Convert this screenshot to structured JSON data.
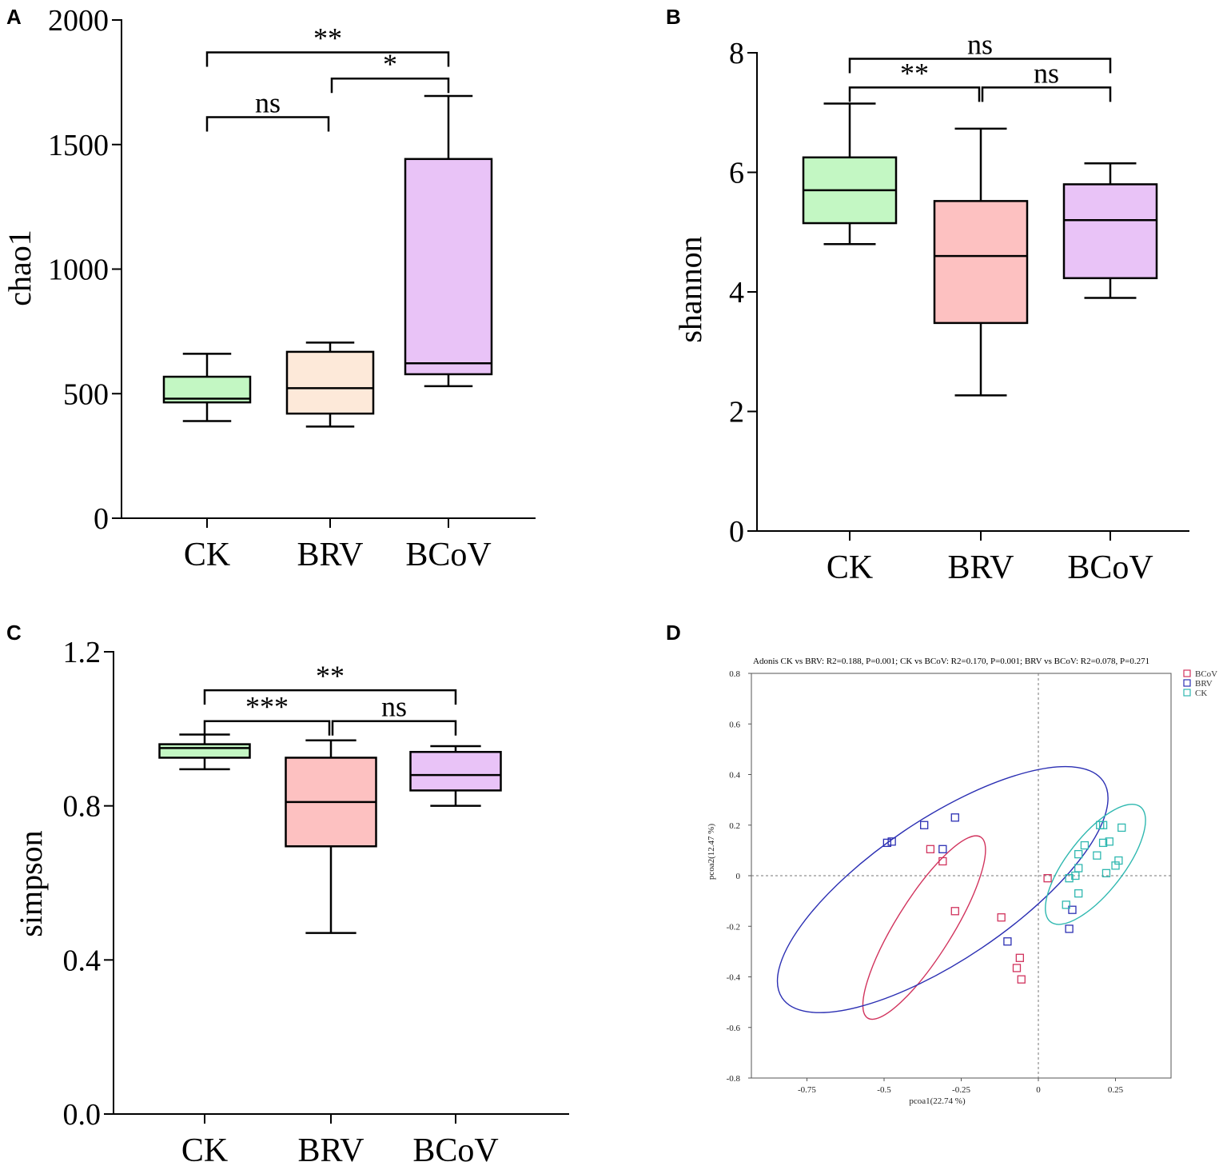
{
  "chart_data": [
    {
      "panel": "A",
      "type": "box",
      "ylabel": "chao1",
      "ylim": [
        0,
        2000
      ],
      "yticks": [
        0,
        500,
        1000,
        1500,
        2000
      ],
      "categories": [
        "CK",
        "BRV",
        "BCoV"
      ],
      "boxes": [
        {
          "name": "CK",
          "min": 390,
          "q1": 465,
          "median": 480,
          "q3": 568,
          "max": 660,
          "color": "#c3f7c3"
        },
        {
          "name": "BRV",
          "min": 368,
          "q1": 420,
          "median": 522,
          "q3": 668,
          "max": 705,
          "color": "#fde9d9"
        },
        {
          "name": "BCoV",
          "min": 530,
          "q1": 578,
          "median": 622,
          "q3": 1442,
          "max": 1695,
          "color": "#e9c3f7"
        }
      ],
      "comparisons": [
        {
          "from": 0,
          "to": 2,
          "label": "**",
          "level": 1870
        },
        {
          "from": 1,
          "to": 2,
          "label": "*",
          "level": 1765
        },
        {
          "from": 0,
          "to": 1,
          "label": "ns",
          "level": 1610
        }
      ]
    },
    {
      "panel": "B",
      "type": "box",
      "ylabel": "shannon",
      "ylim": [
        0,
        8
      ],
      "yticks": [
        0,
        2,
        4,
        6,
        8
      ],
      "categories": [
        "CK",
        "BRV",
        "BCoV"
      ],
      "boxes": [
        {
          "name": "CK",
          "min": 4.8,
          "q1": 5.15,
          "median": 5.7,
          "q3": 6.25,
          "max": 7.15,
          "color": "#c3f7c3"
        },
        {
          "name": "BRV",
          "min": 2.27,
          "q1": 3.48,
          "median": 4.6,
          "q3": 5.52,
          "max": 6.73,
          "color": "#fdc1c1"
        },
        {
          "name": "BCoV",
          "min": 3.9,
          "q1": 4.23,
          "median": 5.2,
          "q3": 5.8,
          "max": 6.15,
          "color": "#e9c3f7"
        }
      ],
      "comparisons": [
        {
          "from": 0,
          "to": 2,
          "label": "ns",
          "level": 7.9
        },
        {
          "from": 0,
          "to": 1,
          "label": "**",
          "level": 7.42
        },
        {
          "from": 1,
          "to": 2,
          "label": "ns",
          "level": 7.42
        }
      ]
    },
    {
      "panel": "C",
      "type": "box",
      "ylabel": "simpson",
      "ylim": [
        0,
        1.2
      ],
      "yticks": [
        "0.0",
        "0.4",
        "0.8",
        "1.2"
      ],
      "categories": [
        "CK",
        "BRV",
        "BCoV"
      ],
      "boxes": [
        {
          "name": "CK",
          "min": 0.895,
          "q1": 0.925,
          "median": 0.95,
          "q3": 0.96,
          "max": 0.985,
          "color": "#c3f7c3"
        },
        {
          "name": "BRV",
          "min": 0.47,
          "q1": 0.695,
          "median": 0.81,
          "q3": 0.925,
          "max": 0.97,
          "color": "#fdc1c1"
        },
        {
          "name": "BCoV",
          "min": 0.8,
          "q1": 0.84,
          "median": 0.88,
          "q3": 0.94,
          "max": 0.955,
          "color": "#e9c3f7"
        }
      ],
      "comparisons": [
        {
          "from": 0,
          "to": 2,
          "label": "**",
          "level": 1.1
        },
        {
          "from": 0,
          "to": 1,
          "label": "***",
          "level": 1.02
        },
        {
          "from": 1,
          "to": 2,
          "label": "ns",
          "level": 1.02
        }
      ]
    },
    {
      "panel": "D",
      "type": "scatter",
      "title": "Adonis CK vs BRV:  R2=0.188, P=0.001; CK vs BCoV:  R2=0.170, P=0.001; BRV vs BCoV:  R2=0.078, P=0.271",
      "xlabel": "pcoa1(22.74 %)",
      "ylabel": "pcoa2(12.47 %)",
      "xlim": [
        -0.93,
        0.43
      ],
      "ylim": [
        -0.8,
        0.8
      ],
      "xticks": [
        "-0.75",
        "-0.5",
        "-0.25",
        "0",
        "0.25"
      ],
      "xtick_values": [
        -0.75,
        -0.5,
        -0.25,
        0,
        0.25
      ],
      "yticks": [
        "0.8",
        "0.6",
        "0.4",
        "0.2",
        "0",
        "-0.2",
        "-0.4",
        "-0.6",
        "-0.8"
      ],
      "ytick_values": [
        0.8,
        0.6,
        0.4,
        0.2,
        0,
        -0.2,
        -0.4,
        -0.6,
        -0.8
      ],
      "series": [
        {
          "name": "BCoV",
          "color": "#d1335d",
          "points": [
            [
              -0.35,
              0.105
            ],
            [
              -0.31,
              0.057
            ],
            [
              -0.27,
              -0.14
            ],
            [
              -0.12,
              -0.165
            ],
            [
              -0.07,
              -0.365
            ],
            [
              -0.06,
              -0.325
            ],
            [
              -0.055,
              -0.41
            ],
            [
              0.03,
              -0.01
            ]
          ],
          "ellipse": {
            "cx": -0.37,
            "cy": -0.205,
            "rx": 0.38,
            "ry": 0.1,
            "angle_deg": -58
          }
        },
        {
          "name": "BRV",
          "color": "#2b2fb3",
          "points": [
            [
              -0.49,
              0.13
            ],
            [
              -0.475,
              0.135
            ],
            [
              -0.37,
              0.2
            ],
            [
              -0.31,
              0.105
            ],
            [
              -0.27,
              0.23
            ],
            [
              -0.1,
              -0.26
            ],
            [
              0.1,
              -0.21
            ],
            [
              0.11,
              -0.135
            ]
          ],
          "ellipse": {
            "cx": -0.31,
            "cy": -0.055,
            "rx": 0.69,
            "ry": 0.25,
            "angle_deg": -34
          }
        },
        {
          "name": "CK",
          "color": "#2fb8b0",
          "points": [
            [
              0.09,
              -0.115
            ],
            [
              0.1,
              -0.01
            ],
            [
              0.12,
              0.0
            ],
            [
              0.13,
              0.03
            ],
            [
              0.13,
              -0.07
            ],
            [
              0.13,
              0.085
            ],
            [
              0.15,
              0.12
            ],
            [
              0.19,
              0.08
            ],
            [
              0.2,
              0.2
            ],
            [
              0.21,
              0.13
            ],
            [
              0.21,
              0.2
            ],
            [
              0.22,
              0.01
            ],
            [
              0.23,
              0.135
            ],
            [
              0.25,
              0.04
            ],
            [
              0.26,
              0.06
            ],
            [
              0.27,
              0.19
            ]
          ],
          "ellipse": {
            "cx": 0.185,
            "cy": 0.045,
            "rx": 0.26,
            "ry": 0.1,
            "angle_deg": -52
          }
        }
      ]
    }
  ]
}
